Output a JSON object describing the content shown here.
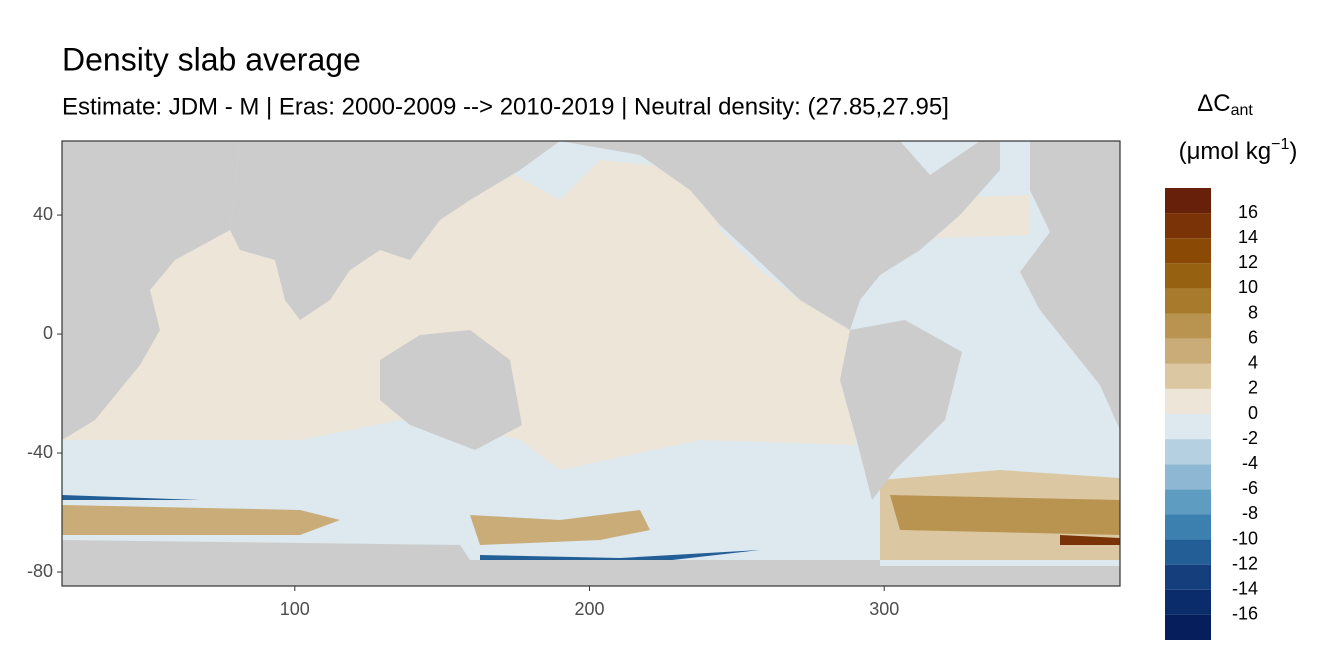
{
  "chart_data": {
    "type": "map",
    "title": "Density slab average",
    "subtitle": "Estimate: JDM - M | Eras: 2000-2009 --> 2010-2019 | Neutral density: (27.85,27.95]",
    "xlim": [
      21,
      380
    ],
    "xticks": [
      100,
      200,
      300
    ],
    "ylim": [
      -84.7,
      64.9
    ],
    "yticks": [
      40,
      0,
      -40,
      -80
    ],
    "grid": false,
    "legend": {
      "title": {
        "symbol": "ΔC",
        "subscript": "ant",
        "unit": "(μmol kg",
        "superscript": "−1",
        "unit_end": ")"
      },
      "breaks": [
        -18,
        -16,
        -14,
        -12,
        -10,
        -8,
        -6,
        -4,
        -2,
        0,
        2,
        4,
        6,
        8,
        10,
        12,
        14,
        16,
        18
      ],
      "colors": [
        "#071e5c",
        "#0b2c6a",
        "#143f7c",
        "#235f96",
        "#3c80b0",
        "#5e9cc2",
        "#8db7d2",
        "#b5d0e1",
        "#dde8ef",
        "#ece5d8",
        "#dbc8a3",
        "#c9ac78",
        "#b99451",
        "#a77a2c",
        "#966110",
        "#8a4a06",
        "#7a3306",
        "#67200a"
      ]
    }
  }
}
